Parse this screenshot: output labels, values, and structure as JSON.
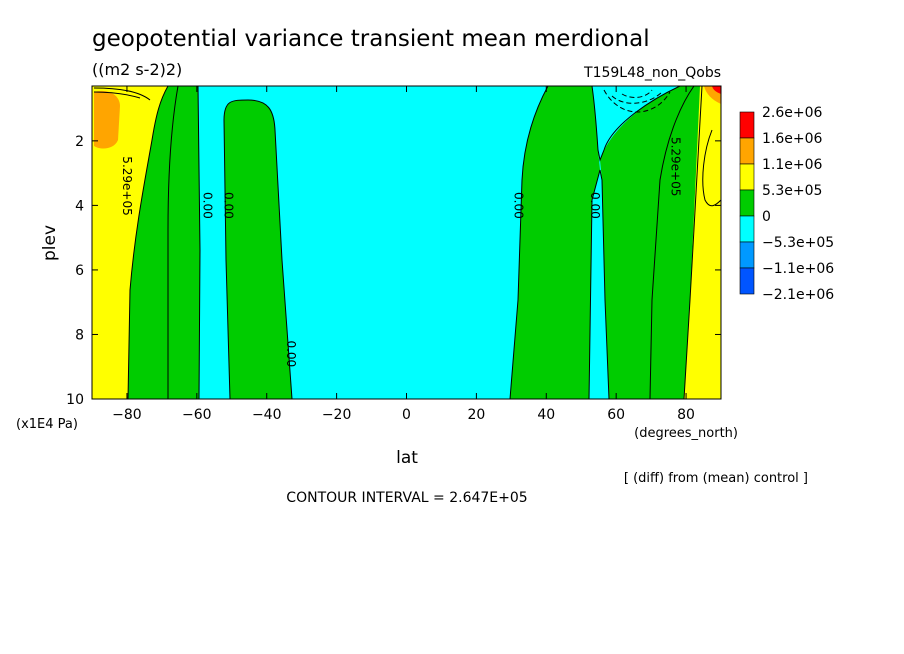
{
  "chart_data": {
    "type": "heatmap",
    "title": "geopotential variance transient mean merdional",
    "units": "((m2 s-2)2)",
    "run_label": "T159L48_non_Qobs",
    "xlabel": "lat",
    "x_units": "(degrees_north)",
    "ylabel": "plev",
    "y_units": "(x1E4 Pa)",
    "xlim": [
      -90,
      90
    ],
    "ylim": [
      10,
      0.3
    ],
    "x_ticks": [
      -80,
      -60,
      -40,
      -20,
      0,
      20,
      40,
      60,
      80
    ],
    "x_tick_labels": [
      "−80",
      "−60",
      "−40",
      "−20",
      "0",
      "20",
      "40",
      "60",
      "80"
    ],
    "y_ticks": [
      2,
      4,
      6,
      8,
      10
    ],
    "y_tick_labels": [
      "2",
      "4",
      "6",
      "8",
      "10"
    ],
    "legend": {
      "placement": "right",
      "colors": [
        "#ff0000",
        "#ffa500",
        "#ffff00",
        "#00cc00",
        "#00ffff",
        "#0099ff",
        "#0055ff"
      ],
      "labels": [
        "2.6e+06",
        "1.6e+06",
        "1.1e+06",
        "5.3e+05",
        "0",
        "−5.3e+05",
        "−1.1e+06",
        "−2.1e+06"
      ]
    },
    "contour_labels": [
      {
        "text": "5.29e+05",
        "lat": -80,
        "plev": 3.4
      },
      {
        "text": "0.00",
        "lat": -57,
        "plev": 4.0
      },
      {
        "text": "0.00",
        "lat": -51,
        "plev": 4.0
      },
      {
        "text": "0.00",
        "lat": -33,
        "plev": 8.6
      },
      {
        "text": "0.00",
        "lat": 32,
        "plev": 4.0
      },
      {
        "text": "0.00",
        "lat": 54,
        "plev": 4.0
      },
      {
        "text": "5.29e+05",
        "lat": 77,
        "plev": 2.8
      }
    ],
    "fields": {
      "yellow_band_sh": {
        "lat_range": [
          -90,
          -74
        ],
        "value_range": "5.3e+05 to 1.1e+06"
      },
      "orange_patch_sh": {
        "lat": -87,
        "plev_range": [
          0.5,
          2.0
        ],
        "value_range": "1.1e+06 to 1.6e+06"
      },
      "green_band_sh": {
        "lat_range": [
          -74,
          -57
        ],
        "value_range": "0 to 5.3e+05"
      },
      "green_band_midlat_sh": {
        "lat_range": [
          -52,
          -33
        ],
        "value_range": "0 to 5.3e+05"
      },
      "cyan_center": {
        "lat_range": [
          -33,
          30
        ],
        "value_range": "−5.3e+05 to 0"
      },
      "green_band_nh": {
        "lat_range": [
          30,
          53
        ],
        "value_range": "0 to 5.3e+05"
      },
      "green_band_nh_high": {
        "lat_range": [
          58,
          78
        ],
        "value_range": "0 to 5.3e+05"
      },
      "yellow_band_nh": {
        "lat_range": [
          78,
          90
        ],
        "value_range": "5.3e+05 to 1.1e+06"
      }
    },
    "contour_interval": "CONTOUR INTERVAL = 2.647E+05",
    "footnote": "[ (diff) from (mean) control ]"
  }
}
